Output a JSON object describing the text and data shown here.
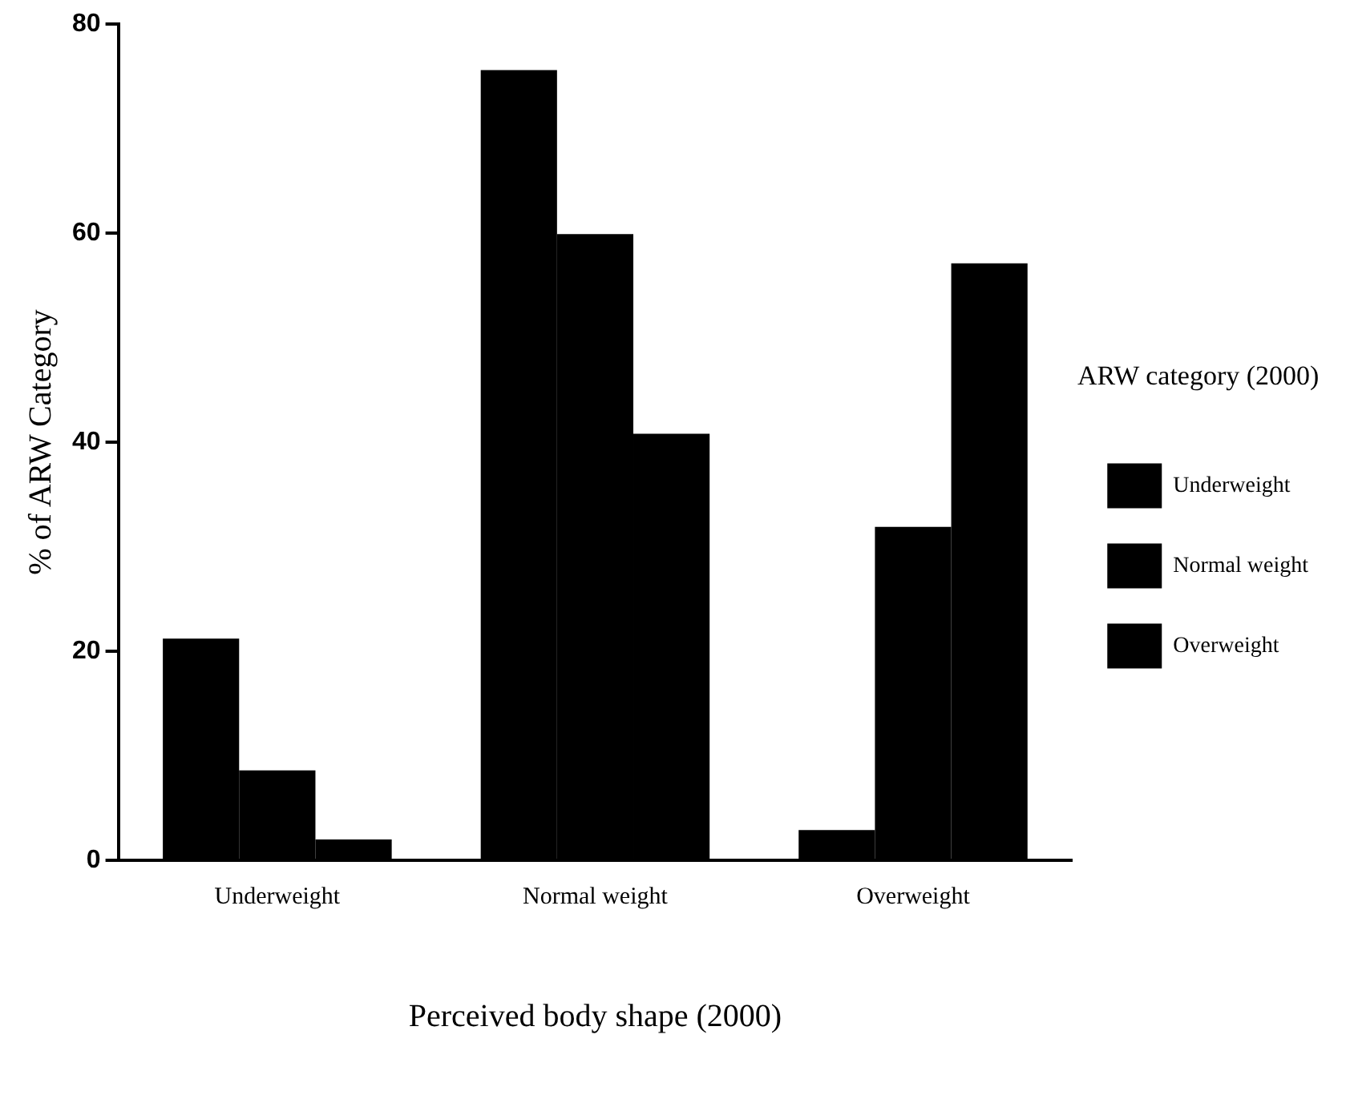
{
  "chart_data": {
    "type": "bar",
    "xlabel": "Perceived body shape (2000)",
    "ylabel": "% of ARW Category",
    "legend_title": "ARW category (2000)",
    "categories": [
      "Underweight",
      "Normal weight",
      "Overweight"
    ],
    "series": [
      {
        "name": "Underweight",
        "color": "#000000",
        "values": [
          21.2,
          75.6,
          2.9
        ]
      },
      {
        "name": "Normal weight",
        "color": "#000000",
        "values": [
          8.6,
          59.9,
          31.9
        ]
      },
      {
        "name": "Overweight",
        "color": "#000000",
        "values": [
          2.0,
          40.8,
          57.1
        ]
      }
    ],
    "ylim": [
      0,
      80
    ],
    "yticks": [
      0,
      20,
      40,
      60,
      80
    ],
    "grid": false,
    "legend": "right"
  }
}
